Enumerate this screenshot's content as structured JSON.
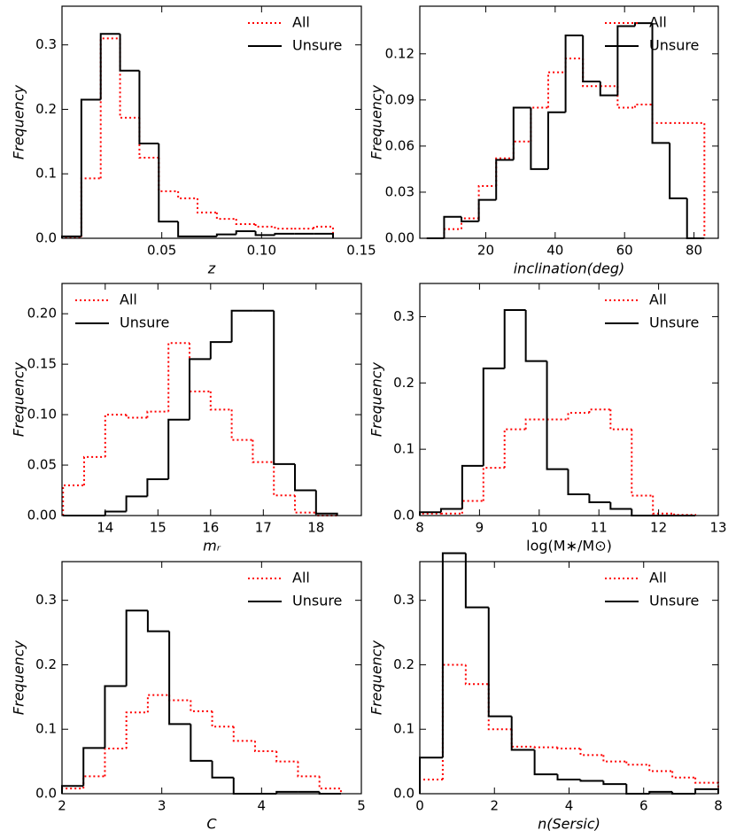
{
  "chart_data": [
    {
      "type": "histogram",
      "xlabel": "z",
      "ylabel": "Frequency",
      "legend": "upper right",
      "bins": [
        0,
        0.0097,
        0.0194,
        0.0291,
        0.0388,
        0.0485,
        0.0582,
        0.0679,
        0.0776,
        0.0873,
        0.097,
        0.1067,
        0.1164,
        0.1261,
        0.1358
      ],
      "series": [
        {
          "name": "All",
          "color": "#ff0000",
          "style": "dotted",
          "values": [
            0.002,
            0.093,
            0.31,
            0.187,
            0.125,
            0.073,
            0.062,
            0.04,
            0.03,
            0.022,
            0.018,
            0.015,
            0.015,
            0.018
          ]
        },
        {
          "name": "Unsure",
          "color": "#000000",
          "style": "solid",
          "values": [
            0.003,
            0.215,
            0.317,
            0.26,
            0.147,
            0.026,
            0.003,
            0.003,
            0.006,
            0.011,
            0.005,
            0.007,
            0.007,
            0.007
          ]
        }
      ],
      "xlim": [
        0,
        0.15
      ],
      "xticks": [
        0.05,
        {
          "value": 0.1,
          "label": "0.10"
        },
        0.15
      ],
      "ylim": [
        0,
        0.36
      ],
      "yticks": [
        {
          "value": 0,
          "label": "0.0"
        },
        0.1,
        0.2,
        0.3
      ]
    },
    {
      "type": "histogram",
      "xlabel": "inclination(deg)",
      "ylabel": "Frequency",
      "legend": "upper right",
      "bins": [
        3,
        8,
        13,
        18,
        23,
        28,
        33,
        38,
        43,
        48,
        53,
        58,
        63,
        68,
        73,
        78,
        83
      ],
      "series": [
        {
          "name": "All",
          "color": "#ff0000",
          "style": "dotted",
          "values": [
            0,
            0.006,
            0.013,
            0.034,
            0.052,
            0.063,
            0.085,
            0.108,
            0.117,
            0.099,
            0.099,
            0.085,
            0.087,
            0.075,
            0.075,
            0.075
          ]
        },
        {
          "name": "Unsure",
          "color": "#000000",
          "style": "solid",
          "values": [
            0,
            0.014,
            0.011,
            0.025,
            0.051,
            0.085,
            0.045,
            0.082,
            0.132,
            0.102,
            0.093,
            0.138,
            0.14,
            0.062,
            0.026,
            0
          ]
        }
      ],
      "xlim": [
        1,
        87
      ],
      "xticks": [
        20,
        40,
        60,
        80
      ],
      "ylim": [
        0,
        0.151
      ],
      "yticks": [
        {
          "value": 0,
          "label": "0.00"
        },
        {
          "value": 0.03,
          "label": "0.03"
        },
        {
          "value": 0.06,
          "label": "0.06"
        },
        {
          "value": 0.09,
          "label": "0.09"
        },
        {
          "value": 0.12,
          "label": "0.12"
        }
      ]
    },
    {
      "type": "histogram",
      "xlabel": "mᵣ",
      "ylabel": "Frequency",
      "legend": "upper left",
      "bins": [
        13.2,
        13.6,
        14.0,
        14.4,
        14.8,
        15.2,
        15.6,
        16.0,
        16.4,
        16.8,
        17.2,
        17.6,
        18.0,
        18.4
      ],
      "series": [
        {
          "name": "All",
          "color": "#ff0000",
          "style": "dotted",
          "values": [
            0.03,
            0.058,
            0.1,
            0.097,
            0.103,
            0.171,
            0.123,
            0.105,
            0.075,
            0.053,
            0.02,
            0.003,
            0
          ]
        },
        {
          "name": "Unsure",
          "color": "#000000",
          "style": "solid",
          "values": [
            0,
            0,
            0.004,
            0.019,
            0.036,
            0.095,
            0.155,
            0.172,
            0.203,
            0.203,
            0.051,
            0.025,
            0.002
          ]
        }
      ],
      "xlim": [
        13.18,
        18.86
      ],
      "xticks": [
        14,
        15,
        16,
        17,
        18
      ],
      "ylim": [
        0,
        0.23
      ],
      "yticks": [
        {
          "value": 0,
          "label": "0.00"
        },
        0.05,
        {
          "value": 0.1,
          "label": "0.10"
        },
        0.15,
        {
          "value": 0.2,
          "label": "0.20"
        }
      ]
    },
    {
      "type": "histogram",
      "xlabel": "log(M∗/M⊙)",
      "ylabel": "Frequency",
      "legend": "upper right",
      "bins": [
        8,
        8.355,
        8.71,
        9.065,
        9.42,
        9.775,
        10.13,
        10.485,
        10.84,
        11.195,
        11.55,
        11.905,
        12.26,
        12.615
      ],
      "series": [
        {
          "name": "All",
          "color": "#ff0000",
          "style": "dotted",
          "values": [
            0.003,
            0.003,
            0.022,
            0.072,
            0.13,
            0.145,
            0.145,
            0.155,
            0.16,
            0.13,
            0.03,
            0.003,
            0.001
          ]
        },
        {
          "name": "Unsure",
          "color": "#000000",
          "style": "solid",
          "values": [
            0.005,
            0.01,
            0.075,
            0.222,
            0.31,
            0.233,
            0.07,
            0.032,
            0.02,
            0.01,
            0,
            0,
            0
          ]
        }
      ],
      "xlim": [
        8,
        13
      ],
      "xticks": [
        8,
        9,
        10,
        11,
        12,
        13
      ],
      "ylim": [
        0,
        0.35
      ],
      "yticks": [
        {
          "value": 0,
          "label": "0.0"
        },
        0.1,
        0.2,
        0.3
      ]
    },
    {
      "type": "histogram",
      "xlabel": "C",
      "ylabel": "Frequency",
      "legend": "upper right",
      "bins": [
        2.0,
        2.215,
        2.43,
        2.645,
        2.86,
        3.075,
        3.29,
        3.505,
        3.72,
        3.935,
        4.15,
        4.365,
        4.58,
        4.795
      ],
      "series": [
        {
          "name": "All",
          "color": "#ff0000",
          "style": "dotted",
          "values": [
            0.008,
            0.027,
            0.07,
            0.126,
            0.153,
            0.145,
            0.128,
            0.104,
            0.082,
            0.066,
            0.05,
            0.027,
            0.008
          ]
        },
        {
          "name": "Unsure",
          "color": "#000000",
          "style": "solid",
          "values": [
            0.012,
            0.071,
            0.167,
            0.284,
            0.252,
            0.108,
            0.051,
            0.025,
            0,
            0,
            0.003,
            0.003,
            0
          ]
        }
      ],
      "xlim": [
        2,
        5
      ],
      "xticks": [
        2,
        3,
        4,
        5
      ],
      "ylim": [
        0,
        0.36
      ],
      "yticks": [
        {
          "value": 0,
          "label": "0.0"
        },
        0.1,
        0.2,
        0.3
      ]
    },
    {
      "type": "histogram",
      "xlabel": "n(Sersic)",
      "ylabel": "Frequency",
      "legend": "upper right",
      "bins": [
        0,
        0.615,
        1.231,
        1.846,
        2.462,
        3.077,
        3.692,
        4.308,
        4.923,
        5.538,
        6.154,
        6.769,
        7.385,
        8
      ],
      "series": [
        {
          "name": "All",
          "color": "#ff0000",
          "style": "dotted",
          "values": [
            0.022,
            0.2,
            0.17,
            0.1,
            0.073,
            0.072,
            0.07,
            0.06,
            0.05,
            0.045,
            0.035,
            0.025,
            0.017
          ]
        },
        {
          "name": "Unsure",
          "color": "#000000",
          "style": "solid",
          "values": [
            0.056,
            0.373,
            0.289,
            0.12,
            0.068,
            0.03,
            0.022,
            0.02,
            0.015,
            0,
            0.003,
            0,
            0.007
          ]
        }
      ],
      "xlim": [
        0,
        8
      ],
      "xticks": [
        0,
        2,
        4,
        6,
        8
      ],
      "ylim": [
        0,
        0.36
      ],
      "yticks": [
        {
          "value": 0,
          "label": "0.0"
        },
        0.1,
        0.2,
        0.3
      ]
    }
  ]
}
